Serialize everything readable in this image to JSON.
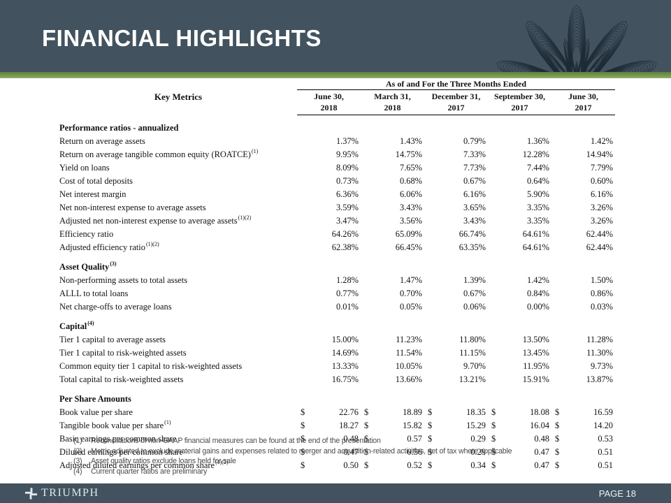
{
  "slide": {
    "title": "FINANCIAL HIGHLIGHTS",
    "brand": "TRIUMPH",
    "page_label": "PAGE 18"
  },
  "colors": {
    "header_bg": "#42535f",
    "accent_green": "#79984f",
    "pattern_stroke": "#1e2b36",
    "footer_bg": "#42535f"
  },
  "table": {
    "spanner": "As of and For the Three Months Ended",
    "key_metrics_label": "Key Metrics",
    "columns": [
      {
        "line1": "June 30,",
        "line2": "2018"
      },
      {
        "line1": "March 31,",
        "line2": "2018"
      },
      {
        "line1": "December 31,",
        "line2": "2017"
      },
      {
        "line1": "September 30,",
        "line2": "2017"
      },
      {
        "line1": "June 30,",
        "line2": "2017"
      }
    ],
    "sections": [
      {
        "heading": "Performance ratios - annualized",
        "heading_sup": "",
        "currency": false,
        "rows": [
          {
            "label": "Return on average assets",
            "sup": "",
            "values": [
              "1.37%",
              "1.43%",
              "0.79%",
              "1.36%",
              "1.42%"
            ]
          },
          {
            "label": "Return on average tangible common equity (ROATCE)",
            "sup": "(1)",
            "values": [
              "9.95%",
              "14.75%",
              "7.33%",
              "12.28%",
              "14.94%"
            ]
          },
          {
            "label": "Yield on loans",
            "sup": "",
            "values": [
              "8.09%",
              "7.65%",
              "7.73%",
              "7.44%",
              "7.79%"
            ]
          },
          {
            "label": "Cost of total deposits",
            "sup": "",
            "values": [
              "0.73%",
              "0.68%",
              "0.67%",
              "0.64%",
              "0.60%"
            ]
          },
          {
            "label": "Net interest margin",
            "sup": "",
            "values": [
              "6.36%",
              "6.06%",
              "6.16%",
              "5.90%",
              "6.16%"
            ]
          },
          {
            "label": "Net non-interest expense to average assets",
            "sup": "",
            "values": [
              "3.59%",
              "3.43%",
              "3.65%",
              "3.35%",
              "3.26%"
            ]
          },
          {
            "label": "Adjusted net non-interest expense to average assets",
            "sup": "(1)(2)",
            "values": [
              "3.47%",
              "3.56%",
              "3.43%",
              "3.35%",
              "3.26%"
            ]
          },
          {
            "label": "Efficiency ratio",
            "sup": "",
            "values": [
              "64.26%",
              "65.09%",
              "66.74%",
              "64.61%",
              "62.44%"
            ]
          },
          {
            "label": "Adjusted efficiency ratio",
            "sup": "(1)(2)",
            "values": [
              "62.38%",
              "66.45%",
              "63.35%",
              "64.61%",
              "62.44%"
            ]
          }
        ]
      },
      {
        "heading": "Asset Quality",
        "heading_sup": "(3)",
        "currency": false,
        "rows": [
          {
            "label": "Non-performing assets to total assets",
            "sup": "",
            "values": [
              "1.28%",
              "1.47%",
              "1.39%",
              "1.42%",
              "1.50%"
            ]
          },
          {
            "label": "ALLL to total loans",
            "sup": "",
            "values": [
              "0.77%",
              "0.70%",
              "0.67%",
              "0.84%",
              "0.86%"
            ]
          },
          {
            "label": "Net charge-offs to average loans",
            "sup": "",
            "values": [
              "0.01%",
              "0.05%",
              "0.06%",
              "0.00%",
              "0.03%"
            ]
          }
        ]
      },
      {
        "heading": "Capital",
        "heading_sup": "(4)",
        "currency": false,
        "rows": [
          {
            "label": "Tier 1 capital to average assets",
            "sup": "",
            "values": [
              "15.00%",
              "11.23%",
              "11.80%",
              "13.50%",
              "11.28%"
            ]
          },
          {
            "label": "Tier 1 capital to risk-weighted assets",
            "sup": "",
            "values": [
              "14.69%",
              "11.54%",
              "11.15%",
              "13.45%",
              "11.30%"
            ]
          },
          {
            "label": "Common equity tier 1 capital to risk-weighted assets",
            "sup": "",
            "values": [
              "13.33%",
              "10.05%",
              "9.70%",
              "11.95%",
              "9.73%"
            ]
          },
          {
            "label": "Total capital to risk-weighted assets",
            "sup": "",
            "values": [
              "16.75%",
              "13.66%",
              "13.21%",
              "15.91%",
              "13.87%"
            ]
          }
        ]
      },
      {
        "heading": "Per Share Amounts",
        "heading_sup": "",
        "currency": true,
        "currency_symbol": "$",
        "rows": [
          {
            "label": "Book value per share",
            "sup": "",
            "values": [
              "22.76",
              "18.89",
              "18.35",
              "18.08",
              "16.59"
            ]
          },
          {
            "label": "Tangible book value per share",
            "sup": "(1)",
            "values": [
              "18.27",
              "15.82",
              "15.29",
              "16.04",
              "14.20"
            ]
          },
          {
            "label": "Basic earnings per common share",
            "sup": "",
            "values": [
              "0.48",
              "0.57",
              "0.29",
              "0.48",
              "0.53"
            ]
          },
          {
            "label": "Diluted earnings per common share",
            "sup": "",
            "values": [
              "0.47",
              "0.56",
              "0.29",
              "0.47",
              "0.51"
            ]
          },
          {
            "label": "Adjusted diluted earnings per common share",
            "sup": "(1)(2)",
            "values": [
              "0.50",
              "0.52",
              "0.34",
              "0.47",
              "0.51"
            ]
          }
        ]
      }
    ]
  },
  "footnotes": [
    {
      "marker": "(1)",
      "text": "Reconciliations of non-GAAP financial measures can be found at the end of the presentation"
    },
    {
      "marker": "(2)",
      "text": "Metric adjusted to exclude material gains and expenses related to merger and acquisition-related activities, net of tax where applicable"
    },
    {
      "marker": "(3)",
      "text": "Asset quality ratios exclude loans held for sale"
    },
    {
      "marker": "(4)",
      "text": "Current quarter ratios are preliminary"
    }
  ]
}
